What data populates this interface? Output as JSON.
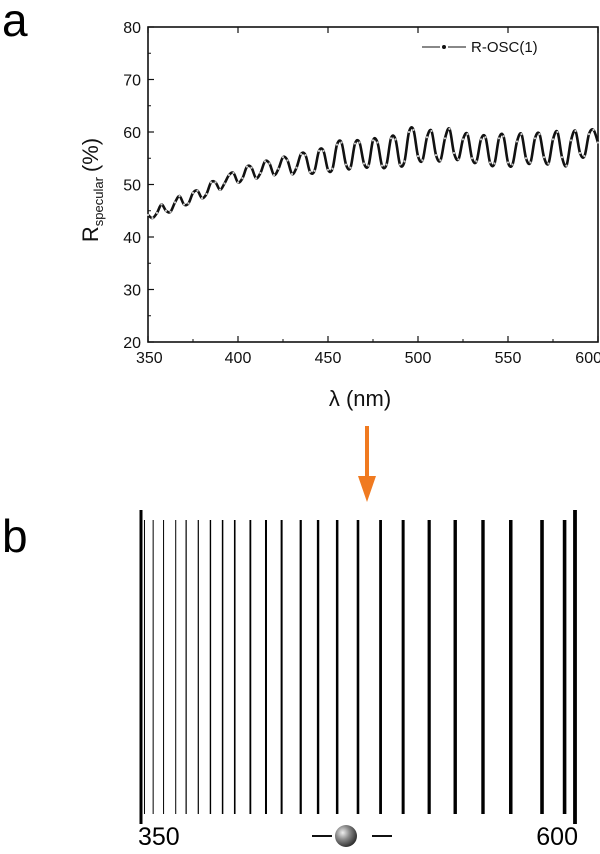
{
  "panels": {
    "a_label": "a",
    "b_label": "b"
  },
  "colors": {
    "line": "#111111",
    "arrow": "#f07a20"
  },
  "chart_data": [
    {
      "type": "line",
      "panel": "a",
      "xlabel": "λ (nm)",
      "ylabel": "R",
      "ylabel_subscript": "specular",
      "ylabel_unit": "(%)",
      "xlim": [
        350,
        600
      ],
      "ylim": [
        20,
        80
      ],
      "xticks": [
        350,
        400,
        450,
        500,
        550,
        600
      ],
      "yticks": [
        20,
        30,
        40,
        50,
        60,
        70,
        80
      ],
      "legend_position": "top-right",
      "series": [
        {
          "name": "R-OSC(1)",
          "x": [
            350,
            352.5,
            355,
            357.5,
            360,
            362.5,
            365,
            367.5,
            370,
            372.5,
            375,
            377.5,
            380,
            382.5,
            385,
            387.5,
            390,
            392.5,
            395,
            397.5,
            400,
            402.5,
            405,
            407.5,
            410,
            412.5,
            415,
            417.5,
            420,
            422.5,
            425,
            427.5,
            430,
            432.5,
            435,
            437.5,
            440,
            442.5,
            445,
            447.5,
            450,
            452.5,
            455,
            457.5,
            460,
            462.5,
            465,
            467.5,
            470,
            472.5,
            475,
            477.5,
            480,
            482.5,
            485,
            487.5,
            490,
            492.5,
            495,
            497.5,
            500,
            502.5,
            505,
            507.5,
            510,
            512.5,
            515,
            517.5,
            520,
            522.5,
            525,
            527.5,
            530,
            532.5,
            535,
            537.5,
            540,
            542.5,
            545,
            547.5,
            550,
            552.5,
            555,
            557.5,
            560,
            562.5,
            565,
            567.5,
            570,
            572.5,
            575,
            577.5,
            580,
            582.5,
            585,
            587.5,
            590,
            592.5,
            595,
            597.5,
            600
          ],
          "y": [
            44.2,
            43.6,
            44.6,
            46.2,
            45.0,
            44.8,
            46.6,
            47.8,
            46.2,
            46.4,
            48.4,
            48.8,
            47.4,
            48.2,
            50.4,
            50.4,
            49.0,
            50.2,
            51.8,
            52.2,
            50.4,
            51.2,
            53.4,
            53.2,
            51.2,
            52.2,
            54.4,
            54.0,
            51.8,
            53.0,
            55.2,
            54.6,
            52.0,
            53.2,
            55.8,
            55.6,
            52.4,
            52.6,
            56.4,
            56.4,
            52.8,
            53.0,
            57.6,
            58.0,
            53.8,
            53.2,
            57.8,
            58.0,
            54.0,
            53.6,
            58.4,
            58.0,
            53.6,
            53.8,
            58.8,
            58.6,
            53.8,
            54.4,
            60.0,
            60.4,
            55.4,
            54.6,
            59.0,
            60.2,
            55.6,
            54.6,
            58.8,
            60.6,
            56.0,
            54.8,
            58.6,
            59.6,
            55.0,
            54.4,
            58.6,
            59.0,
            54.2,
            54.0,
            58.8,
            59.2,
            54.2,
            53.8,
            58.2,
            59.6,
            55.0,
            54.2,
            58.8,
            59.6,
            55.2,
            54.0,
            58.6,
            60.0,
            55.2,
            53.6,
            58.4,
            60.2,
            56.0,
            55.4,
            59.6,
            60.4,
            58.0
          ]
        }
      ]
    },
    {
      "type": "barcode",
      "panel": "b",
      "xlim": [
        350,
        600
      ],
      "start_label": "350",
      "end_label": "600",
      "lines_nm": [
        350,
        352,
        357,
        363,
        370,
        376,
        383,
        390,
        397,
        404,
        413,
        422,
        431,
        442,
        452,
        463,
        475,
        488,
        501,
        516,
        531,
        547,
        563,
        581,
        594,
        600
      ],
      "line_widths": [
        3,
        1,
        1,
        1,
        1,
        1.2,
        1.2,
        1.4,
        1.5,
        1.6,
        1.8,
        2,
        2,
        2.2,
        2.4,
        2.5,
        2.6,
        2.8,
        3,
        3.2,
        3.4,
        3.4,
        3.5,
        3.6,
        3.6,
        3.8
      ],
      "annotation_marker": "sphere"
    }
  ]
}
